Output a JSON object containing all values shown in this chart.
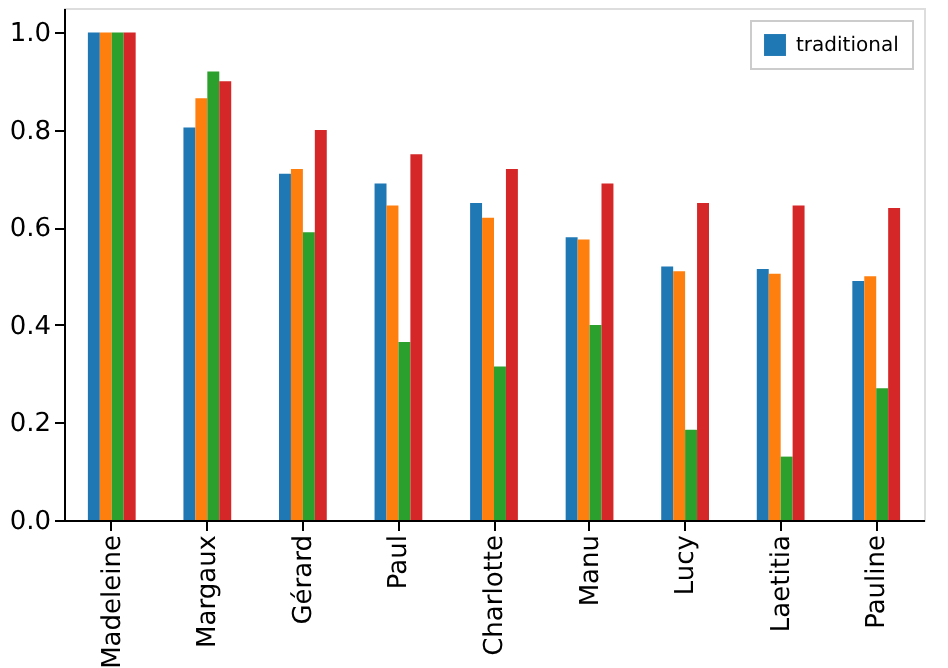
{
  "chart_data": {
    "type": "bar",
    "categories": [
      "Madeleine",
      "Margaux",
      "Gérard",
      "Paul",
      "Charlotte",
      "Manu",
      "Lucy",
      "Laetitia",
      "Pauline"
    ],
    "series": [
      {
        "name": "traditional",
        "color": "#1f77b4",
        "values": [
          1.0,
          0.805,
          0.71,
          0.69,
          0.65,
          0.58,
          0.52,
          0.515,
          0.49
        ]
      },
      {
        "color": "#ff7f0e",
        "values": [
          1.0,
          0.865,
          0.72,
          0.645,
          0.62,
          0.575,
          0.51,
          0.505,
          0.5
        ]
      },
      {
        "color": "#2ca02c",
        "values": [
          1.0,
          0.92,
          0.59,
          0.365,
          0.315,
          0.4,
          0.185,
          0.13,
          0.27
        ]
      },
      {
        "color": "#d62728",
        "values": [
          1.0,
          0.9,
          0.8,
          0.75,
          0.72,
          0.69,
          0.65,
          0.645,
          0.64
        ]
      }
    ],
    "ylim": [
      0,
      1.05
    ],
    "yticks": [
      {
        "value": 0,
        "label": "0.0"
      },
      0.2,
      0.4,
      0.6,
      0.8,
      {
        "value": 1,
        "label": "1.0"
      }
    ],
    "grid": false,
    "legend": "top right"
  }
}
